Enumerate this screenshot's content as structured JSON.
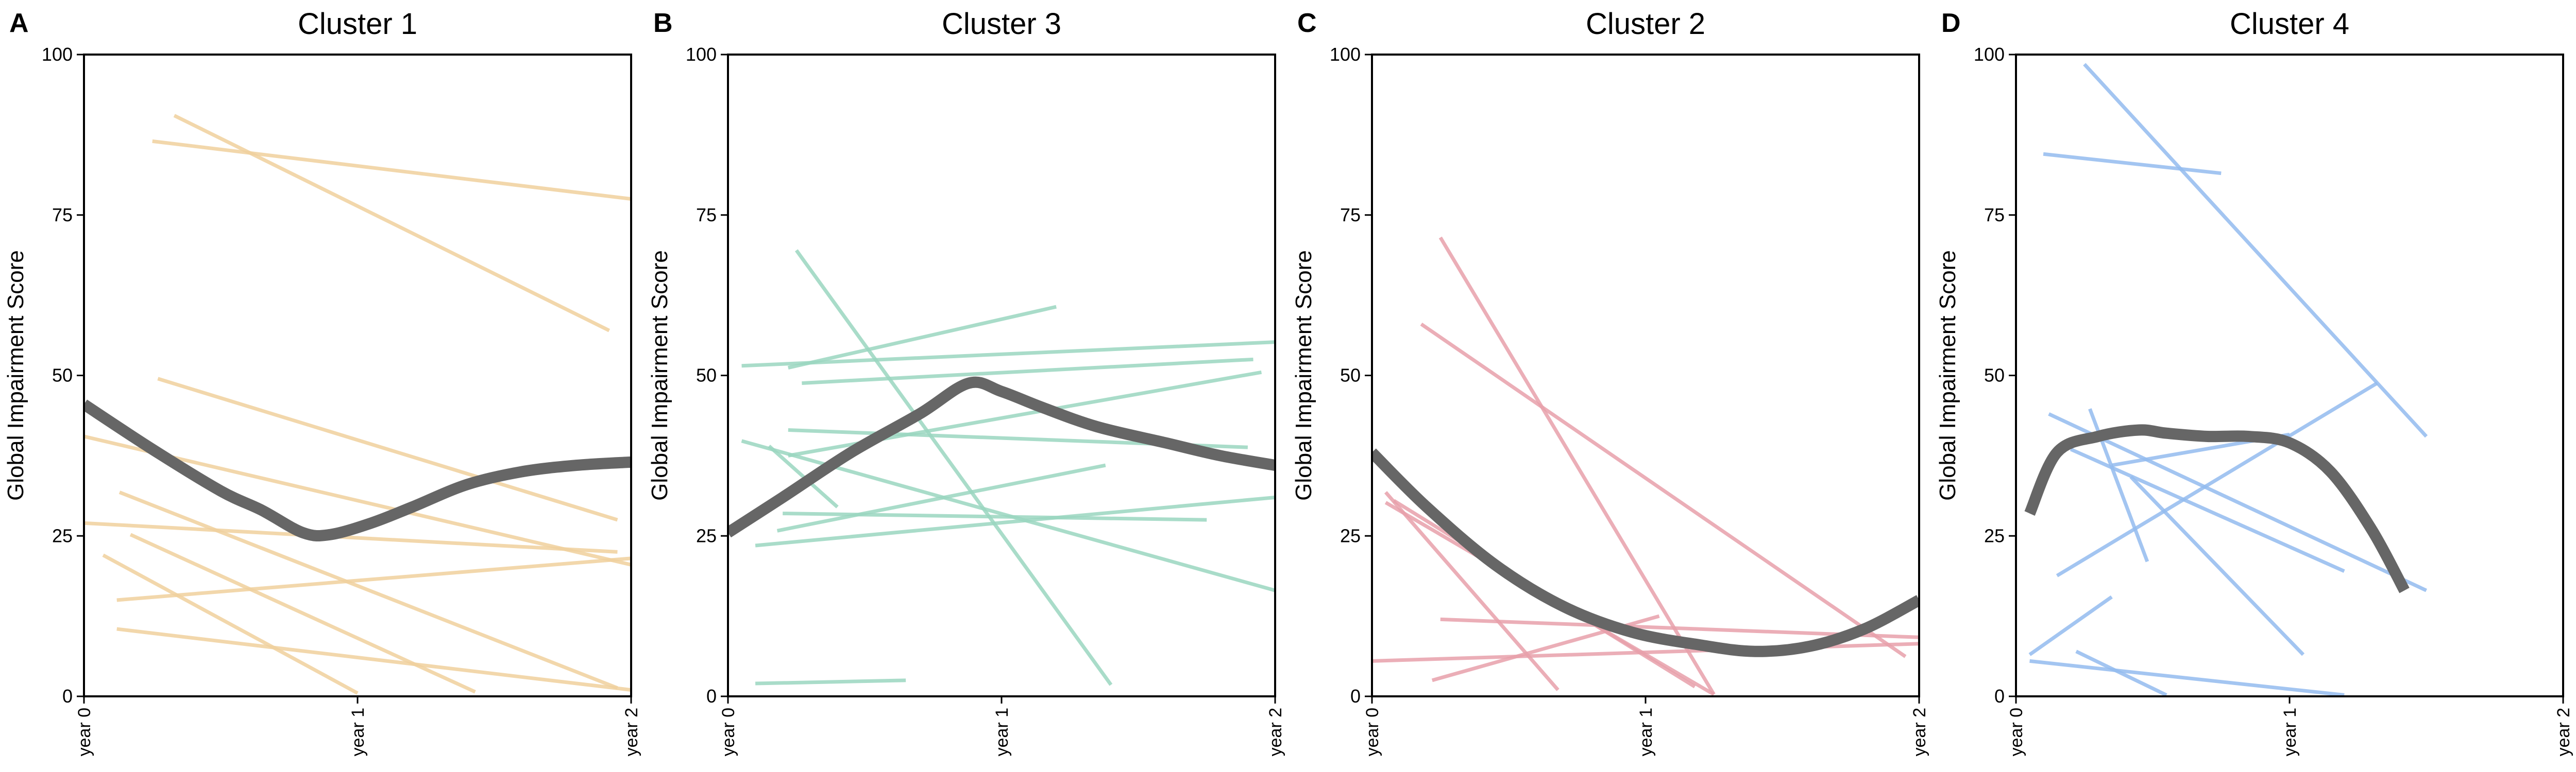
{
  "chart_data": [
    {
      "type": "line",
      "panel": "A",
      "title": "Cluster 1",
      "ylabel": "Global Impairment Score",
      "ylim": [
        0,
        100
      ],
      "xlim": [
        0,
        2
      ],
      "yticks": [
        0,
        25,
        50,
        75,
        100
      ],
      "xticks": [
        0,
        1,
        2
      ],
      "xtick_labels": [
        "year 0",
        "year 1",
        "year 2"
      ],
      "line_color": "#f0d09c",
      "trend_color": "#666666",
      "series": [
        {
          "x": [
            0.33,
            1.92
          ],
          "y": [
            90.5,
            57
          ]
        },
        {
          "x": [
            0.25,
            2.0
          ],
          "y": [
            86.5,
            77.5
          ]
        },
        {
          "x": [
            0.27,
            1.95
          ],
          "y": [
            49.5,
            27.5
          ]
        },
        {
          "x": [
            0.0,
            2.0
          ],
          "y": [
            40.5,
            20.5
          ]
        },
        {
          "x": [
            0.0,
            1.95
          ],
          "y": [
            27,
            22.5
          ]
        },
        {
          "x": [
            0.13,
            1.95
          ],
          "y": [
            31.8,
            1.3
          ]
        },
        {
          "x": [
            0.17,
            1.43
          ],
          "y": [
            25.2,
            0.7
          ]
        },
        {
          "x": [
            0.12,
            2.0
          ],
          "y": [
            15.0,
            21.5
          ]
        },
        {
          "x": [
            0.07,
            1.0
          ],
          "y": [
            22.0,
            0.5
          ]
        },
        {
          "x": [
            0.12,
            2.0
          ],
          "y": [
            10.5,
            1.0
          ]
        }
      ],
      "trend": {
        "x": [
          0.0,
          0.25,
          0.5,
          0.65,
          0.8,
          0.9,
          1.05,
          1.2,
          1.4,
          1.6,
          1.8,
          2.0
        ],
        "y": [
          45.5,
          38.5,
          32.0,
          29.0,
          25.5,
          25.2,
          27.0,
          29.5,
          33.0,
          35.0,
          36.0,
          36.5
        ]
      }
    },
    {
      "type": "line",
      "panel": "B",
      "title": "Cluster 3",
      "ylabel": "Global Impairment Score",
      "ylim": [
        0,
        100
      ],
      "xlim": [
        0,
        2
      ],
      "yticks": [
        0,
        25,
        50,
        75,
        100
      ],
      "xticks": [
        0,
        1,
        2
      ],
      "xtick_labels": [
        "year 0",
        "year 1",
        "year 2"
      ],
      "line_color": "#9ad6c0",
      "trend_color": "#666666",
      "series": [
        {
          "x": [
            0.25,
            1.4
          ],
          "y": [
            69.5,
            1.8
          ]
        },
        {
          "x": [
            0.05,
            2.0
          ],
          "y": [
            51.5,
            55.2
          ]
        },
        {
          "x": [
            0.22,
            1.2
          ],
          "y": [
            51.2,
            60.7
          ]
        },
        {
          "x": [
            0.27,
            1.92
          ],
          "y": [
            48.8,
            52.5
          ]
        },
        {
          "x": [
            0.22,
            1.9
          ],
          "y": [
            41.5,
            38.8
          ]
        },
        {
          "x": [
            0.22,
            1.95
          ],
          "y": [
            37.5,
            50.5
          ]
        },
        {
          "x": [
            0.15,
            0.4
          ],
          "y": [
            39.0,
            29.5
          ]
        },
        {
          "x": [
            0.1,
            2.0
          ],
          "y": [
            23.5,
            31.0
          ]
        },
        {
          "x": [
            0.2,
            1.75
          ],
          "y": [
            28.5,
            27.5
          ]
        },
        {
          "x": [
            0.18,
            1.38
          ],
          "y": [
            25.8,
            36.0
          ]
        },
        {
          "x": [
            0.1,
            0.65
          ],
          "y": [
            2.0,
            2.5
          ]
        },
        {
          "x": [
            0.05,
            2.0
          ],
          "y": [
            39.8,
            16.5
          ]
        }
      ],
      "trend": {
        "x": [
          0.0,
          0.2,
          0.45,
          0.7,
          0.88,
          1.0,
          1.15,
          1.35,
          1.6,
          1.8,
          2.0
        ],
        "y": [
          25.5,
          31.0,
          38.0,
          44.0,
          48.8,
          47.5,
          45.0,
          42.0,
          39.5,
          37.5,
          36.0
        ]
      }
    },
    {
      "type": "line",
      "panel": "C",
      "title": "Cluster 2",
      "ylabel": "Global Impairment Score",
      "ylim": [
        0,
        100
      ],
      "xlim": [
        0,
        2
      ],
      "yticks": [
        0,
        25,
        50,
        75,
        100
      ],
      "xticks": [
        0,
        1,
        2
      ],
      "xtick_labels": [
        "year 0",
        "year 1",
        "year 2"
      ],
      "line_color": "#e8a0aa",
      "trend_color": "#666666",
      "series": [
        {
          "x": [
            0.25,
            1.25
          ],
          "y": [
            71.5,
            0.3
          ]
        },
        {
          "x": [
            0.18,
            1.95
          ],
          "y": [
            58.0,
            6.2
          ]
        },
        {
          "x": [
            0.05,
            0.68
          ],
          "y": [
            31.8,
            1.0
          ]
        },
        {
          "x": [
            0.05,
            1.25
          ],
          "y": [
            30.2,
            0.3
          ]
        },
        {
          "x": [
            0.0,
            2.0
          ],
          "y": [
            5.5,
            8.2
          ]
        },
        {
          "x": [
            0.25,
            2.0
          ],
          "y": [
            12.0,
            9.2
          ]
        },
        {
          "x": [
            0.22,
            1.05
          ],
          "y": [
            2.5,
            12.5
          ]
        },
        {
          "x": [
            0.08,
            1.18
          ],
          "y": [
            30.5,
            1.5
          ]
        }
      ],
      "trend": {
        "x": [
          0.0,
          0.2,
          0.45,
          0.7,
          0.95,
          1.2,
          1.4,
          1.6,
          1.8,
          2.0
        ],
        "y": [
          38.0,
          29.5,
          20.5,
          14.0,
          10.0,
          8.0,
          7.0,
          7.8,
          10.5,
          15.0
        ]
      }
    },
    {
      "type": "line",
      "panel": "D",
      "title": "Cluster 4",
      "ylabel": "Global Impairment Score",
      "ylim": [
        0,
        100
      ],
      "xlim": [
        0,
        2
      ],
      "yticks": [
        0,
        25,
        50,
        75,
        100
      ],
      "xticks": [
        0,
        1,
        2
      ],
      "xtick_labels": [
        "year 0",
        "year 1",
        "year 2"
      ],
      "line_color": "#93bbef",
      "trend_color": "#666666",
      "series": [
        {
          "x": [
            0.25,
            1.5
          ],
          "y": [
            98.5,
            40.5
          ]
        },
        {
          "x": [
            0.1,
            0.75
          ],
          "y": [
            84.5,
            81.5
          ]
        },
        {
          "x": [
            0.15,
            1.32
          ],
          "y": [
            18.8,
            48.8
          ]
        },
        {
          "x": [
            0.12,
            1.5
          ],
          "y": [
            44.0,
            16.5
          ]
        },
        {
          "x": [
            0.2,
            1.2
          ],
          "y": [
            38.5,
            19.5
          ]
        },
        {
          "x": [
            0.27,
            0.48
          ],
          "y": [
            44.8,
            21.0
          ]
        },
        {
          "x": [
            0.35,
            1.0
          ],
          "y": [
            36.0,
            40.8
          ]
        },
        {
          "x": [
            0.42,
            1.05
          ],
          "y": [
            34.2,
            6.5
          ]
        },
        {
          "x": [
            0.05,
            0.35
          ],
          "y": [
            6.5,
            15.5
          ]
        },
        {
          "x": [
            0.05,
            1.2
          ],
          "y": [
            5.5,
            0.2
          ]
        },
        {
          "x": [
            0.22,
            0.55
          ],
          "y": [
            7.0,
            0.2
          ]
        }
      ],
      "trend": {
        "x": [
          0.05,
          0.15,
          0.3,
          0.45,
          0.55,
          0.7,
          0.85,
          1.0,
          1.15,
          1.3,
          1.42
        ],
        "y": [
          28.5,
          38.0,
          40.5,
          41.5,
          41.0,
          40.5,
          40.5,
          39.5,
          35.0,
          26.0,
          16.5
        ]
      }
    }
  ]
}
